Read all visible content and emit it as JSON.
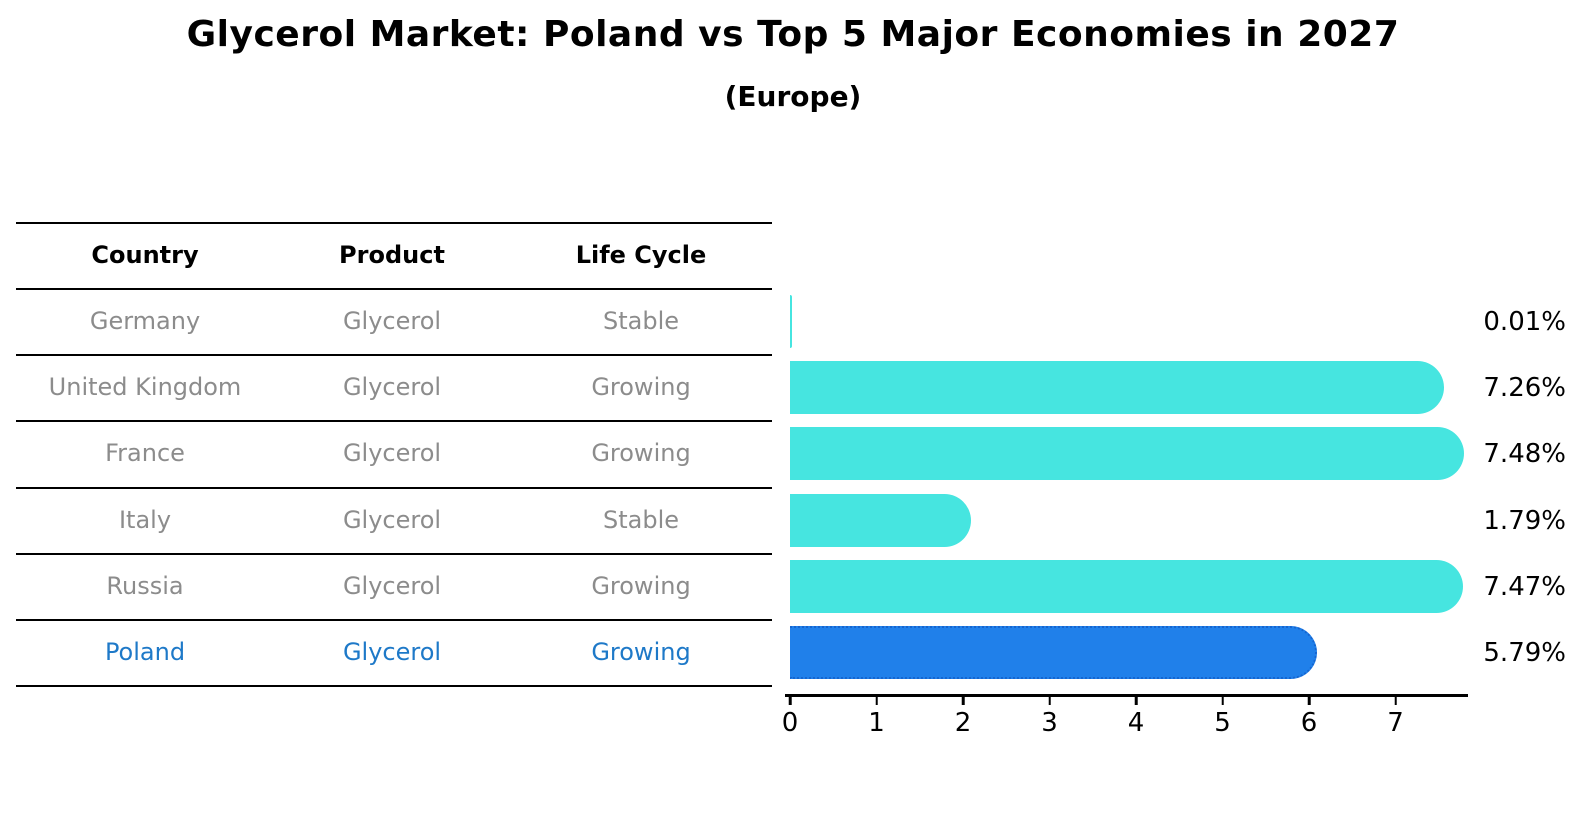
{
  "chart_data": {
    "type": "bar",
    "orientation": "horizontal",
    "title": "Glycerol Market: Poland vs Top 5 Major Economies in 2027",
    "subtitle": "(Europe)",
    "categories": [
      "Germany",
      "United Kingdom",
      "France",
      "Italy",
      "Russia",
      "Poland"
    ],
    "values": [
      0.01,
      7.26,
      7.48,
      1.79,
      7.47,
      5.79
    ],
    "value_labels": [
      "0.01%",
      "7.26%",
      "7.48%",
      "1.79%",
      "7.47%",
      "5.79%"
    ],
    "xticks": [
      0,
      1,
      2,
      3,
      4,
      5,
      6,
      7
    ],
    "xlim": [
      0,
      7.84
    ],
    "grid": false,
    "legend": "none",
    "bar_color": "#46e5e0",
    "highlight_index": 5,
    "highlight_color": "#2080ea",
    "highlight_border_color": "#1565d0",
    "highlight_text_color": "#1e79c8",
    "row_text_color": "#8c8c8c"
  },
  "table": {
    "columns": [
      "Country",
      "Product",
      "Life Cycle"
    ],
    "rows": [
      {
        "country": "Germany",
        "product": "Glycerol",
        "life_cycle": "Stable",
        "highlight": false
      },
      {
        "country": "United Kingdom",
        "product": "Glycerol",
        "life_cycle": "Growing",
        "highlight": false
      },
      {
        "country": "France",
        "product": "Glycerol",
        "life_cycle": "Growing",
        "highlight": false
      },
      {
        "country": "Italy",
        "product": "Glycerol",
        "life_cycle": "Stable",
        "highlight": false
      },
      {
        "country": "Russia",
        "product": "Glycerol",
        "life_cycle": "Growing",
        "highlight": false
      },
      {
        "country": "Poland",
        "product": "Glycerol",
        "life_cycle": "Growing",
        "highlight": true
      }
    ]
  }
}
